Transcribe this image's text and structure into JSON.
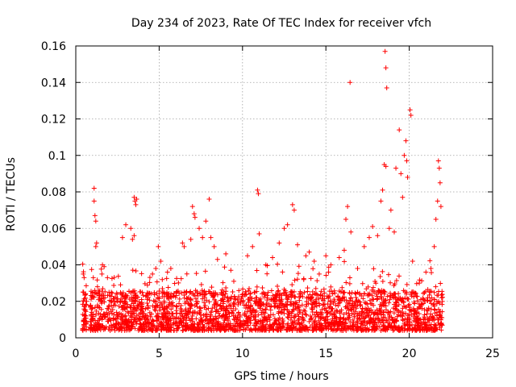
{
  "chart_data": {
    "type": "scatter",
    "title": "Day 234 of 2023, Rate Of TEC Index for receiver vfch",
    "xlabel": "GPS time / hours",
    "ylabel": "ROTI / TECUs",
    "xlim": [
      0,
      25
    ],
    "ylim": [
      0,
      0.16
    ],
    "xticks": [
      0,
      5,
      10,
      15,
      20,
      25
    ],
    "xtick_labels": [
      "0",
      "5",
      "10",
      "15",
      "20",
      "25"
    ],
    "yticks": [
      0,
      0.02,
      0.04,
      0.06,
      0.08,
      0.1,
      0.12,
      0.14,
      0.16
    ],
    "ytick_labels": [
      "0",
      "0.02",
      "0.04",
      "0.06",
      "0.08",
      "0.1",
      "0.12",
      "0.14",
      "0.16"
    ],
    "grid": true,
    "marker": "+",
    "marker_color": "#ff0000",
    "series": [
      {
        "name": "vfch",
        "points": [
          [
            0.45,
            0.035
          ],
          [
            0.5,
            0.033
          ],
          [
            0.55,
            0.015
          ],
          [
            0.6,
            0.012
          ],
          [
            0.5,
            0.009
          ],
          [
            0.65,
            0.02
          ],
          [
            1.1,
            0.082
          ],
          [
            1.1,
            0.075
          ],
          [
            1.15,
            0.067
          ],
          [
            1.2,
            0.064
          ],
          [
            1.25,
            0.052
          ],
          [
            1.2,
            0.05
          ],
          [
            1.05,
            0.033
          ],
          [
            1.3,
            0.028
          ],
          [
            1.6,
            0.04
          ],
          [
            1.7,
            0.039
          ],
          [
            1.9,
            0.033
          ],
          [
            2.8,
            0.055
          ],
          [
            3.0,
            0.062
          ],
          [
            3.3,
            0.06
          ],
          [
            3.4,
            0.054
          ],
          [
            3.5,
            0.056
          ],
          [
            3.5,
            0.077
          ],
          [
            3.55,
            0.075
          ],
          [
            3.6,
            0.073
          ],
          [
            3.65,
            0.076
          ],
          [
            4.6,
            0.035
          ],
          [
            4.8,
            0.038
          ],
          [
            4.95,
            0.05
          ],
          [
            5.1,
            0.042
          ],
          [
            5.5,
            0.036
          ],
          [
            5.7,
            0.038
          ],
          [
            5.85,
            0.023
          ],
          [
            6.4,
            0.052
          ],
          [
            6.5,
            0.05
          ],
          [
            6.9,
            0.054
          ],
          [
            7.0,
            0.072
          ],
          [
            7.1,
            0.068
          ],
          [
            7.15,
            0.066
          ],
          [
            7.4,
            0.06
          ],
          [
            7.6,
            0.055
          ],
          [
            7.8,
            0.064
          ],
          [
            8.0,
            0.076
          ],
          [
            8.1,
            0.055
          ],
          [
            8.3,
            0.05
          ],
          [
            8.5,
            0.043
          ],
          [
            9.0,
            0.046
          ],
          [
            9.3,
            0.037
          ],
          [
            10.3,
            0.045
          ],
          [
            10.6,
            0.05
          ],
          [
            10.9,
            0.081
          ],
          [
            10.95,
            0.079
          ],
          [
            11.0,
            0.057
          ],
          [
            11.4,
            0.04
          ],
          [
            11.8,
            0.044
          ],
          [
            12.2,
            0.052
          ],
          [
            12.5,
            0.06
          ],
          [
            12.7,
            0.062
          ],
          [
            13.0,
            0.073
          ],
          [
            13.1,
            0.07
          ],
          [
            13.3,
            0.051
          ],
          [
            13.8,
            0.045
          ],
          [
            14.0,
            0.047
          ],
          [
            14.3,
            0.042
          ],
          [
            14.6,
            0.035
          ],
          [
            15.0,
            0.045
          ],
          [
            15.3,
            0.04
          ],
          [
            15.8,
            0.044
          ],
          [
            16.1,
            0.048
          ],
          [
            16.2,
            0.065
          ],
          [
            16.3,
            0.072
          ],
          [
            16.45,
            0.14
          ],
          [
            16.5,
            0.058
          ],
          [
            16.9,
            0.038
          ],
          [
            17.3,
            0.05
          ],
          [
            17.6,
            0.055
          ],
          [
            17.8,
            0.061
          ],
          [
            18.1,
            0.056
          ],
          [
            18.3,
            0.075
          ],
          [
            18.4,
            0.081
          ],
          [
            18.5,
            0.095
          ],
          [
            18.6,
            0.094
          ],
          [
            18.55,
            0.157
          ],
          [
            18.6,
            0.148
          ],
          [
            18.65,
            0.137
          ],
          [
            18.8,
            0.06
          ],
          [
            18.9,
            0.07
          ],
          [
            19.1,
            0.058
          ],
          [
            19.2,
            0.093
          ],
          [
            19.4,
            0.114
          ],
          [
            19.5,
            0.09
          ],
          [
            19.6,
            0.077
          ],
          [
            19.7,
            0.1
          ],
          [
            19.8,
            0.108
          ],
          [
            19.85,
            0.097
          ],
          [
            19.9,
            0.088
          ],
          [
            20.05,
            0.125
          ],
          [
            20.1,
            0.122
          ],
          [
            20.2,
            0.042
          ],
          [
            20.6,
            0.03
          ],
          [
            21.0,
            0.036
          ],
          [
            21.3,
            0.038
          ],
          [
            21.5,
            0.05
          ],
          [
            21.6,
            0.065
          ],
          [
            21.7,
            0.075
          ],
          [
            21.75,
            0.097
          ],
          [
            21.8,
            0.093
          ],
          [
            21.85,
            0.085
          ],
          [
            21.9,
            0.072
          ]
        ]
      }
    ],
    "density_profile": {
      "description": "Dense band of ROTI values between ~0.005 and ~0.025 TECU/min across 0.4–22 h",
      "x_range": [
        0.4,
        22.0
      ],
      "y_base_min": 0.004,
      "y_base_max": 0.026,
      "sample_count": 2600
    }
  }
}
